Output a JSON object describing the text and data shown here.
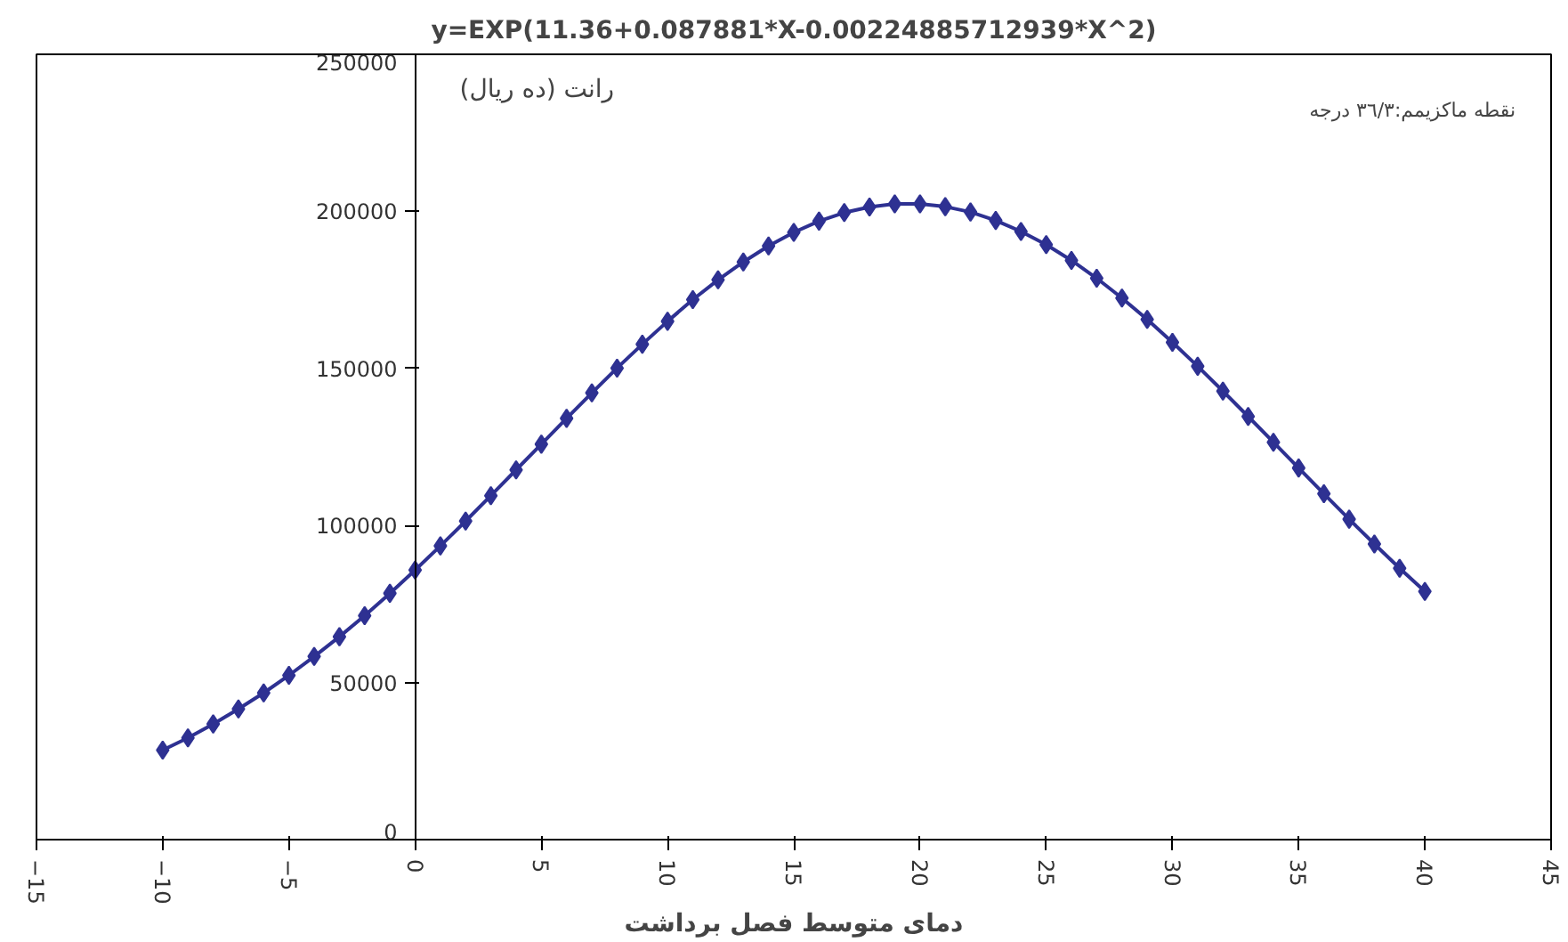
{
  "chart_data": {
    "type": "line",
    "title": "y=EXP(11.36+0.087881*X-0.00224885712939*X^2)",
    "xlabel": "دمای متوسط فصل برداشت",
    "ylabel": "رانت (ده ریال)",
    "annotations": [
      "نقطه ماکزیمم:۳٦/۳ درجه"
    ],
    "x": [
      -10,
      -9,
      -8,
      -7,
      -6,
      -5,
      -4,
      -3,
      -2,
      -1,
      0,
      1,
      2,
      3,
      4,
      5,
      6,
      7,
      8,
      9,
      10,
      11,
      12,
      13,
      14,
      15,
      16,
      17,
      18,
      19,
      20,
      21,
      22,
      23,
      24,
      25,
      26,
      27,
      28,
      29,
      30,
      31,
      32,
      33,
      34,
      35,
      36,
      37,
      38,
      39,
      40
    ],
    "series": [
      {
        "color": "#2e3192",
        "values": [
          28500,
          32400,
          36800,
          41600,
          46700,
          52300,
          58300,
          64600,
          71300,
          78400,
          85800,
          93500,
          101400,
          109500,
          117700,
          125900,
          134100,
          142200,
          150100,
          157700,
          165000,
          171900,
          178200,
          183900,
          189000,
          193300,
          196900,
          199600,
          201400,
          202400,
          202400,
          201500,
          199800,
          197100,
          193600,
          189400,
          184400,
          178700,
          172400,
          165600,
          158300,
          150700,
          142800,
          134700,
          126500,
          118300,
          110100,
          102000,
          94100,
          86400,
          79000
        ]
      }
    ],
    "xlim": [
      -15,
      45
    ],
    "xticks": [
      -15,
      -10,
      -5,
      0,
      5,
      10,
      15,
      20,
      25,
      30,
      35,
      40,
      45
    ],
    "ylim": [
      0,
      250000
    ],
    "yticks": [
      0,
      50000,
      100000,
      150000,
      200000,
      250000
    ],
    "grid": false,
    "marker": "diamond",
    "line_style": "solid"
  }
}
